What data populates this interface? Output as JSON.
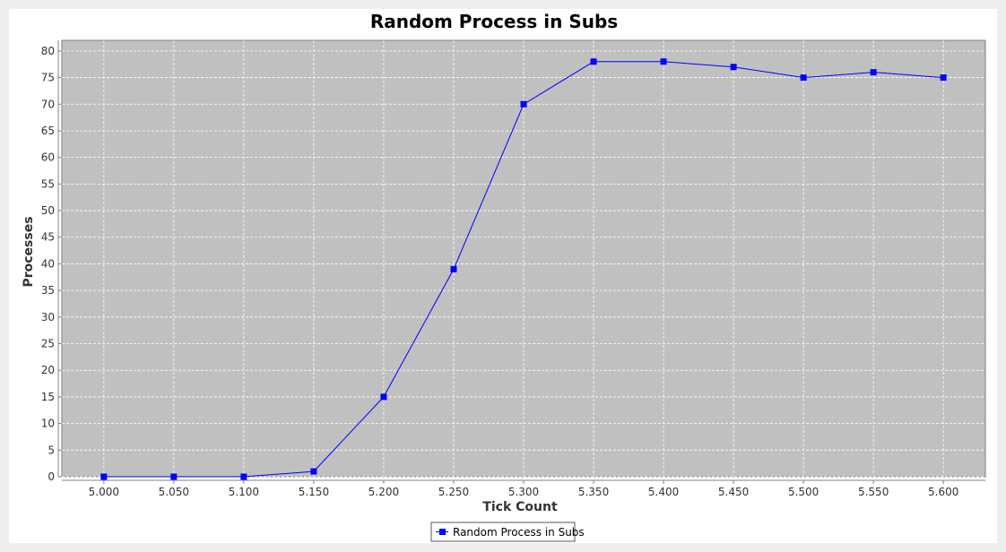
{
  "chart_data": {
    "type": "line",
    "title": "Random Process in Subs",
    "xlabel": "Tick Count",
    "ylabel": "Processes",
    "xlim": [
      4.97,
      5.63
    ],
    "ylim": [
      0,
      82
    ],
    "x_ticks": [
      "5.000",
      "5.050",
      "5.100",
      "5.150",
      "5.200",
      "5.250",
      "5.300",
      "5.350",
      "5.400",
      "5.450",
      "5.500",
      "5.550",
      "5.600"
    ],
    "y_ticks": [
      "0",
      "5",
      "10",
      "15",
      "20",
      "25",
      "30",
      "35",
      "40",
      "45",
      "50",
      "55",
      "60",
      "65",
      "70",
      "75",
      "80"
    ],
    "grid": true,
    "legend_position": "bottom",
    "plot_background": "#c0c0c0",
    "series": [
      {
        "name": "Random Process in Subs",
        "color": "#0000ff",
        "marker": "square",
        "x": [
          5.0,
          5.05,
          5.1,
          5.15,
          5.2,
          5.25,
          5.3,
          5.35,
          5.4,
          5.45,
          5.5,
          5.55,
          5.6
        ],
        "values": [
          0,
          0,
          0,
          1,
          15,
          39,
          70,
          78,
          78,
          77,
          75,
          76,
          75
        ]
      }
    ]
  }
}
